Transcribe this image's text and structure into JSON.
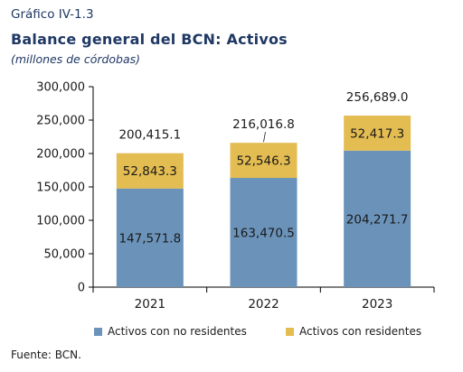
{
  "header": {
    "label": "Gráfico IV-1.3",
    "title": "Balance general del BCN: Activos",
    "subtitle": "(millones de córdobas)"
  },
  "source": "Fuente: BCN.",
  "colors": {
    "series_0": "#6b93ba",
    "series_1": "#e3bc52"
  },
  "chart_data": {
    "type": "bar",
    "stacked": true,
    "categories": [
      "2021",
      "2022",
      "2023"
    ],
    "series": [
      {
        "name": "Activos con no residentes",
        "values": [
          147571.8,
          163470.5,
          204271.7
        ]
      },
      {
        "name": "Activos con residentes",
        "values": [
          52843.3,
          52546.3,
          52417.3
        ]
      }
    ],
    "value_labels": [
      [
        "147,571.8",
        "163,470.5",
        "204,271.7"
      ],
      [
        "52,843.3",
        "52,546.3",
        "52,417.3"
      ]
    ],
    "totals": [
      200415.1,
      216016.8,
      256689.0
    ],
    "total_labels": [
      "200,415.1",
      "216,016.8",
      "256,689.0"
    ],
    "ylim": [
      0,
      300000
    ],
    "yticks": [
      0,
      50000,
      100000,
      150000,
      200000,
      250000,
      300000
    ],
    "ytick_labels": [
      "0",
      "50,000",
      "100,000",
      "150,000",
      "200,000",
      "250,000",
      "300,000"
    ],
    "grid": false,
    "legend": "bottom"
  }
}
